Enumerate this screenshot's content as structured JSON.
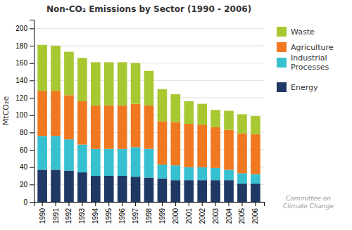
{
  "chart_data": {
    "type": "bar",
    "stacked": true,
    "title": "Non-CO₂ Emissions by Sector (1990 - 2006)",
    "ylabel": "MtCO₂e",
    "categories": [
      "1990",
      "1991",
      "1992",
      "1993",
      "1994",
      "1995",
      "1996",
      "1997",
      "1998",
      "1999",
      "2000",
      "2001",
      "2002",
      "2003",
      "2004",
      "2005",
      "2006"
    ],
    "series": [
      {
        "name": "Energy",
        "color": "#1f3864",
        "values": [
          37,
          37,
          36,
          34,
          30,
          30,
          30,
          29,
          28,
          27,
          25,
          25,
          25,
          25,
          25,
          21,
          21
        ]
      },
      {
        "name": "Industrial\nProcesses",
        "color": "#36c0d0",
        "values": [
          39,
          39,
          36,
          32,
          31,
          31,
          31,
          34,
          33,
          16,
          17,
          15,
          15,
          14,
          12,
          12,
          11
        ]
      },
      {
        "name": "Agriculture",
        "color": "#f07820",
        "values": [
          52,
          52,
          51,
          50,
          50,
          50,
          50,
          50,
          50,
          50,
          50,
          50,
          49,
          47,
          46,
          46,
          46
        ]
      },
      {
        "name": "Waste",
        "color": "#a8c832",
        "values": [
          53,
          52,
          50,
          50,
          50,
          50,
          50,
          47,
          40,
          37,
          32,
          26,
          24,
          20,
          22,
          22,
          21
        ]
      }
    ],
    "ylim": [
      0,
      210
    ],
    "yticks": [
      0,
      20,
      40,
      60,
      80,
      100,
      120,
      140,
      160,
      180,
      200
    ],
    "grid": true,
    "legend": "right",
    "annotations": [
      "Committee on\nClimate Change"
    ]
  }
}
